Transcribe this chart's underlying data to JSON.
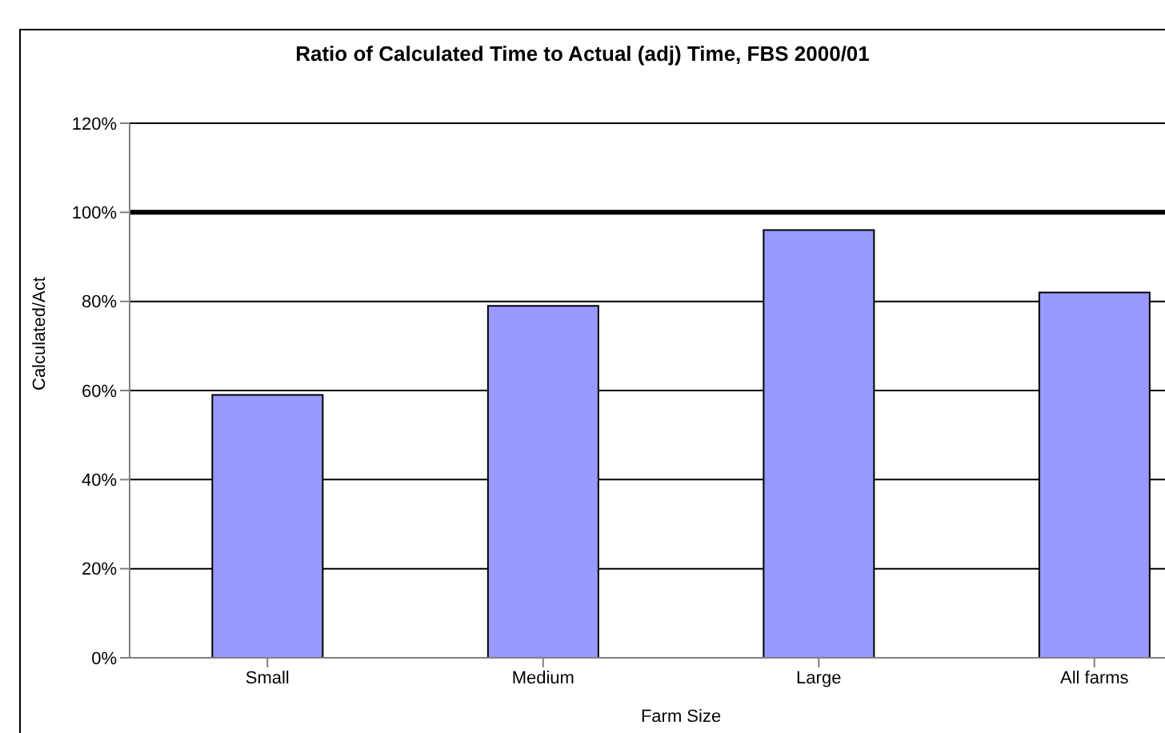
{
  "chart_data": {
    "type": "bar",
    "title": "Ratio of Calculated Time to Actual (adj) Time, FBS 2000/01",
    "xlabel": "Farm Size",
    "ylabel": "Calculated/Act",
    "categories": [
      "Small",
      "Medium",
      "Large",
      "All farms"
    ],
    "series": [
      {
        "color": "#9999ff",
        "values": [
          59,
          79,
          96,
          82
        ]
      }
    ],
    "ylim": [
      0,
      120
    ],
    "yticks": [
      {
        "value": 0,
        "label": "0%"
      },
      {
        "value": 20,
        "label": "20%"
      },
      {
        "value": 40,
        "label": "40%"
      },
      {
        "value": 60,
        "label": "60%"
      },
      {
        "value": 80,
        "label": "80%"
      },
      {
        "value": 100,
        "label": "100%"
      },
      {
        "value": 120,
        "label": "120%"
      }
    ],
    "grid": "y",
    "ref_lines": [
      {
        "axis": "y",
        "value": 100,
        "color": "#000000"
      }
    ]
  }
}
